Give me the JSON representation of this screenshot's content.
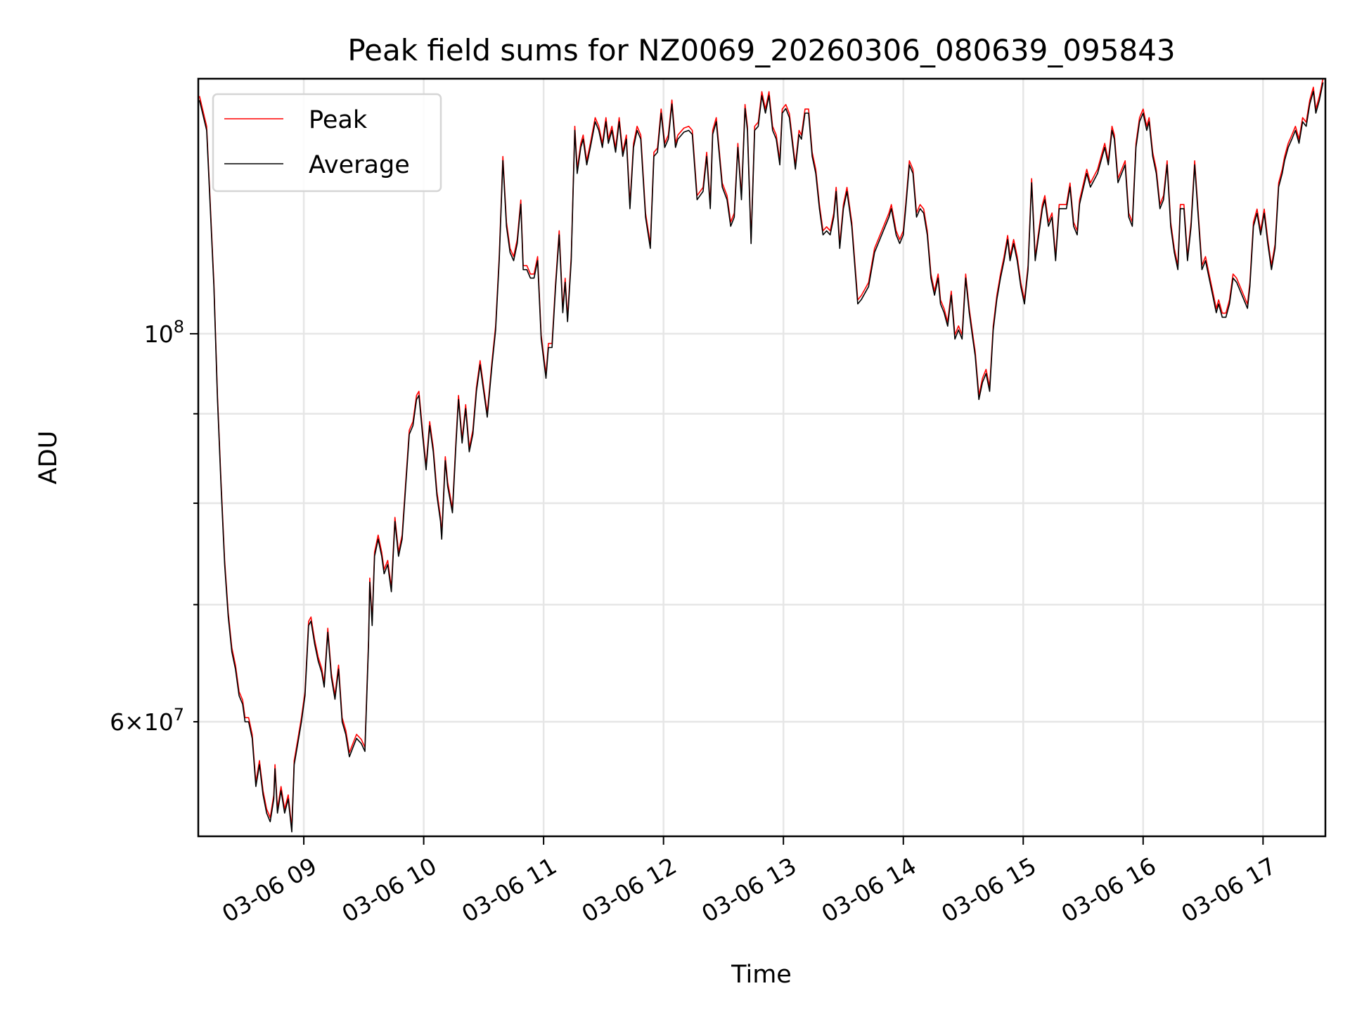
{
  "chart_data": {
    "type": "line",
    "title": "Peak field sums for NZ0069_20260306_080639_095843",
    "xlabel": "Time",
    "ylabel": "ADU",
    "yscale": "log",
    "xlim_hours": [
      8.12,
      17.52
    ],
    "ylim": [
      51600000,
      139900000
    ],
    "grid": true,
    "legend_position": "upper-left",
    "x_ticks": [
      {
        "hour": 9,
        "label": "03-06 09"
      },
      {
        "hour": 10,
        "label": "03-06 10"
      },
      {
        "hour": 11,
        "label": "03-06 11"
      },
      {
        "hour": 12,
        "label": "03-06 12"
      },
      {
        "hour": 13,
        "label": "03-06 13"
      },
      {
        "hour": 14,
        "label": "03-06 14"
      },
      {
        "hour": 15,
        "label": "03-06 15"
      },
      {
        "hour": 16,
        "label": "03-06 16"
      },
      {
        "hour": 17,
        "label": "03-06 17"
      }
    ],
    "y_major_ticks": [
      {
        "value": 100000000,
        "base": "10",
        "exp": "8",
        "mant": ""
      }
    ],
    "y_minor_ticks": [
      {
        "value": 60000000,
        "mant": "6",
        "base": "10",
        "exp": "7",
        "labeled": true
      },
      {
        "value": 70000000,
        "labeled": false
      },
      {
        "value": 80000000,
        "labeled": false
      },
      {
        "value": 90000000,
        "labeled": false
      }
    ],
    "x_hours": [
      8.13,
      8.19,
      8.22,
      8.25,
      8.28,
      8.31,
      8.34,
      8.37,
      8.4,
      8.43,
      8.46,
      8.49,
      8.51,
      8.54,
      8.57,
      8.6,
      8.63,
      8.66,
      8.69,
      8.72,
      8.75,
      8.76,
      8.78,
      8.81,
      8.84,
      8.87,
      8.9,
      8.92,
      8.95,
      8.98,
      9.01,
      9.04,
      9.06,
      9.09,
      9.12,
      9.15,
      9.17,
      9.2,
      9.23,
      9.26,
      9.29,
      9.32,
      9.35,
      9.38,
      9.41,
      9.44,
      9.48,
      9.51,
      9.54,
      9.55,
      9.57,
      9.59,
      9.62,
      9.65,
      9.67,
      9.7,
      9.73,
      9.76,
      9.79,
      9.82,
      9.85,
      9.88,
      9.91,
      9.94,
      9.96,
      9.99,
      10.02,
      10.05,
      10.08,
      10.11,
      10.14,
      10.15,
      10.18,
      10.2,
      10.24,
      10.27,
      10.29,
      10.32,
      10.35,
      10.38,
      10.41,
      10.44,
      10.47,
      10.5,
      10.53,
      10.57,
      10.6,
      10.63,
      10.66,
      10.69,
      10.72,
      10.75,
      10.78,
      10.81,
      10.83,
      10.86,
      10.89,
      10.92,
      10.95,
      10.98,
      11.02,
      11.04,
      11.07,
      11.1,
      11.13,
      11.16,
      11.18,
      11.2,
      11.23,
      11.26,
      11.28,
      11.31,
      11.33,
      11.36,
      11.39,
      11.43,
      11.46,
      11.49,
      11.52,
      11.54,
      11.57,
      11.6,
      11.63,
      11.66,
      11.69,
      11.72,
      11.75,
      11.78,
      11.81,
      11.85,
      11.89,
      11.92,
      11.95,
      11.98,
      12.01,
      12.04,
      12.07,
      12.1,
      12.12,
      12.17,
      12.21,
      12.24,
      12.28,
      12.33,
      12.36,
      12.39,
      12.41,
      12.44,
      12.49,
      12.53,
      12.56,
      12.59,
      12.62,
      12.65,
      12.68,
      12.7,
      12.73,
      12.76,
      12.79,
      12.82,
      12.85,
      12.88,
      12.91,
      12.94,
      12.97,
      12.99,
      13.02,
      13.05,
      13.1,
      13.13,
      13.15,
      13.18,
      13.21,
      13.24,
      13.27,
      13.3,
      13.33,
      13.36,
      13.39,
      13.42,
      13.44,
      13.47,
      13.5,
      13.53,
      13.57,
      13.62,
      13.65,
      13.71,
      13.76,
      13.82,
      13.88,
      13.9,
      13.94,
      13.97,
      14.0,
      14.02,
      14.05,
      14.08,
      14.11,
      14.14,
      14.17,
      14.2,
      14.23,
      14.26,
      14.29,
      14.31,
      14.34,
      14.37,
      14.4,
      14.43,
      14.46,
      14.49,
      14.52,
      14.55,
      14.58,
      14.6,
      14.63,
      14.66,
      14.69,
      14.72,
      14.75,
      14.78,
      14.81,
      14.84,
      14.87,
      14.89,
      14.92,
      14.95,
      14.98,
      15.01,
      15.04,
      15.07,
      15.1,
      15.13,
      15.16,
      15.18,
      15.21,
      15.24,
      15.27,
      15.3,
      15.36,
      15.39,
      15.42,
      15.45,
      15.47,
      15.53,
      15.56,
      15.62,
      15.68,
      15.71,
      15.74,
      15.76,
      15.79,
      15.85,
      15.88,
      15.91,
      15.94,
      15.97,
      16.0,
      16.03,
      16.05,
      16.08,
      16.11,
      16.14,
      16.17,
      16.2,
      16.23,
      16.26,
      16.29,
      16.31,
      16.34,
      16.37,
      16.4,
      16.43,
      16.46,
      16.49,
      16.52,
      16.55,
      16.58,
      16.61,
      16.63,
      16.66,
      16.69,
      16.72,
      16.75,
      16.78,
      16.84,
      16.87,
      16.89,
      16.92,
      16.95,
      16.98,
      17.01,
      17.04,
      17.07,
      17.1,
      17.13,
      17.16,
      17.18,
      17.21,
      17.24,
      17.27,
      17.3,
      17.33,
      17.36,
      17.39,
      17.42,
      17.44,
      17.47,
      17.5
    ],
    "average_values_1e7": [
      13.6,
      13.07,
      11.79,
      10.64,
      9.17,
      8.18,
      7.38,
      6.89,
      6.58,
      6.43,
      6.21,
      6.14,
      6.0,
      6.0,
      5.87,
      5.51,
      5.67,
      5.45,
      5.32,
      5.26,
      5.42,
      5.64,
      5.32,
      5.48,
      5.32,
      5.42,
      5.19,
      5.67,
      5.83,
      6.0,
      6.21,
      6.81,
      6.85,
      6.65,
      6.5,
      6.4,
      6.28,
      6.75,
      6.36,
      6.18,
      6.43,
      6.0,
      5.9,
      5.73,
      5.8,
      5.87,
      5.83,
      5.77,
      6.65,
      7.21,
      6.81,
      7.46,
      7.63,
      7.46,
      7.29,
      7.38,
      7.12,
      7.81,
      7.46,
      7.63,
      8.18,
      8.76,
      8.86,
      9.17,
      9.22,
      8.76,
      8.36,
      8.86,
      8.56,
      8.08,
      7.81,
      7.63,
      8.46,
      8.18,
      7.9,
      8.66,
      9.17,
      8.66,
      9.06,
      8.56,
      8.76,
      9.27,
      9.6,
      9.27,
      8.96,
      9.6,
      10.05,
      11.01,
      12.56,
      11.52,
      11.13,
      11.01,
      11.26,
      11.86,
      10.88,
      10.88,
      10.76,
      10.76,
      11.01,
      9.93,
      9.43,
      9.82,
      9.82,
      10.64,
      11.39,
      10.28,
      10.7,
      10.16,
      11.01,
      13.07,
      12.35,
      12.78,
      12.92,
      12.49,
      12.78,
      13.22,
      13.07,
      12.78,
      13.22,
      12.85,
      13.07,
      12.7,
      13.22,
      12.63,
      12.92,
      11.79,
      12.78,
      13.07,
      12.92,
      11.66,
      11.19,
      12.63,
      12.7,
      13.37,
      12.78,
      12.92,
      13.53,
      12.78,
      12.92,
      13.04,
      13.07,
      13.0,
      11.93,
      12.06,
      12.63,
      11.79,
      13.0,
      13.22,
      12.13,
      11.93,
      11.52,
      11.66,
      12.78,
      11.93,
      13.45,
      13.07,
      11.26,
      13.07,
      13.14,
      13.68,
      13.37,
      13.68,
      13.07,
      12.92,
      12.49,
      13.37,
      13.45,
      13.29,
      12.42,
      13.0,
      12.92,
      13.37,
      13.37,
      12.63,
      12.35,
      11.79,
      11.39,
      11.45,
      11.39,
      11.66,
      12.06,
      11.19,
      11.79,
      12.06,
      11.52,
      10.4,
      10.46,
      10.64,
      11.13,
      11.39,
      11.66,
      11.79,
      11.39,
      11.26,
      11.39,
      11.79,
      12.49,
      12.35,
      11.66,
      11.79,
      11.72,
      11.39,
      10.76,
      10.52,
      10.76,
      10.4,
      10.28,
      10.1,
      10.52,
      9.93,
      10.05,
      9.93,
      10.76,
      10.28,
      9.93,
      9.71,
      9.17,
      9.38,
      9.49,
      9.27,
      10.05,
      10.46,
      10.76,
      11.01,
      11.32,
      11.01,
      11.26,
      11.01,
      10.64,
      10.4,
      10.88,
      12.2,
      11.01,
      11.39,
      11.79,
      11.93,
      11.52,
      11.66,
      11.01,
      11.79,
      11.79,
      12.13,
      11.52,
      11.39,
      11.86,
      12.35,
      12.13,
      12.35,
      12.78,
      12.49,
      13.07,
      12.92,
      12.2,
      12.49,
      11.66,
      11.52,
      12.78,
      13.22,
      13.37,
      13.07,
      13.22,
      12.63,
      12.35,
      11.79,
      11.93,
      12.49,
      11.52,
      11.13,
      10.88,
      11.79,
      11.79,
      11.01,
      11.52,
      12.49,
      11.66,
      10.88,
      11.01,
      10.76,
      10.52,
      10.28,
      10.4,
      10.22,
      10.22,
      10.4,
      10.76,
      10.7,
      10.46,
      10.34,
      10.64,
      11.52,
      11.72,
      11.39,
      11.72,
      11.26,
      10.88,
      11.19,
      12.13,
      12.35,
      12.56,
      12.78,
      12.92,
      13.07,
      12.85,
      13.22,
      13.14,
      13.53,
      13.76,
      13.37,
      13.6,
      13.92
    ],
    "series": [
      {
        "name": "Peak",
        "color": "#ff0000",
        "ratio_to_average": 1.004
      },
      {
        "name": "Average",
        "color": "#000000",
        "ratio_to_average": 1.0
      }
    ]
  }
}
